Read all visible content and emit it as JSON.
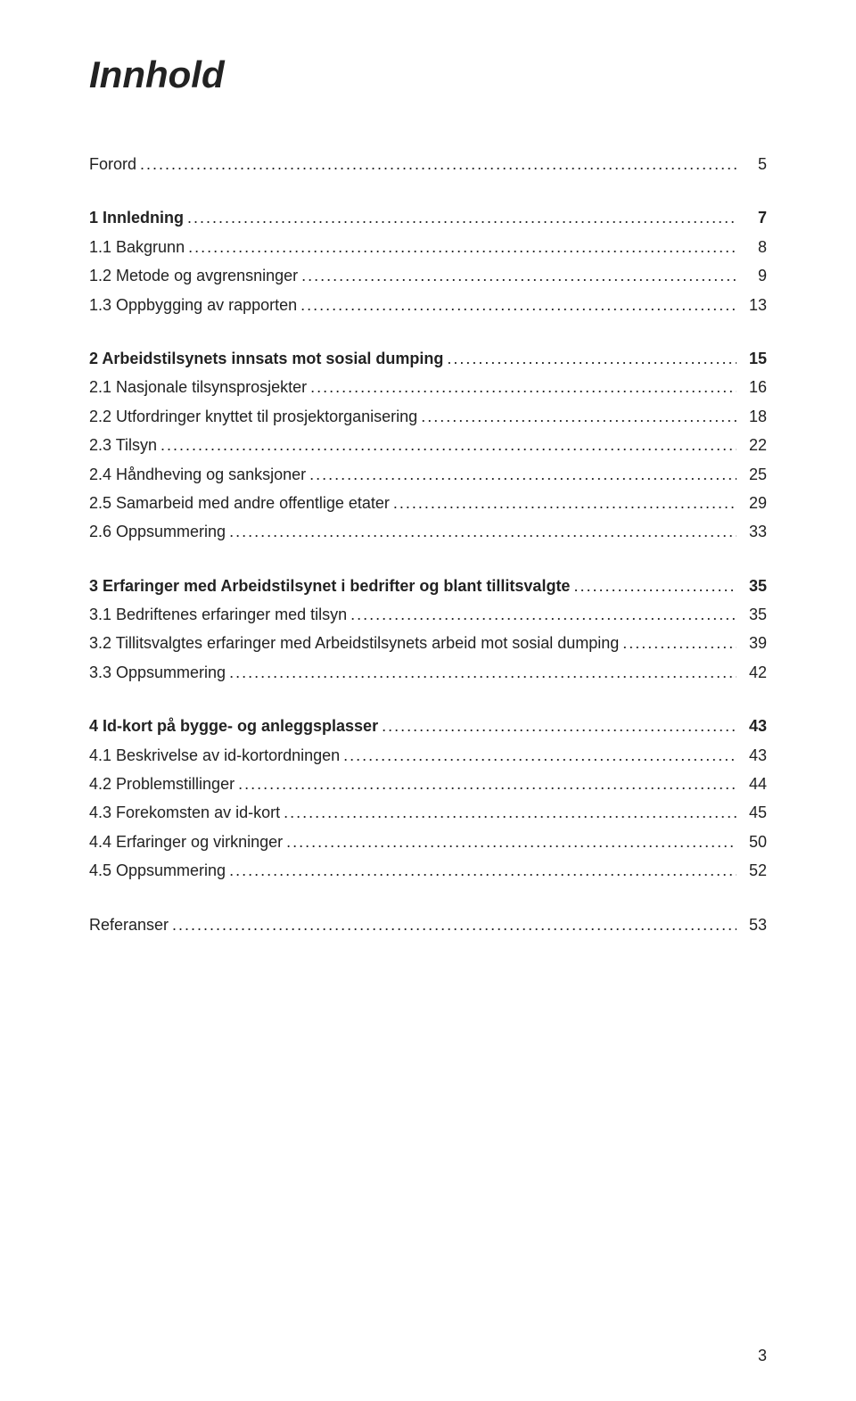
{
  "title": "Innhold",
  "page_number": "3",
  "colors": {
    "text": "#222222",
    "background": "#ffffff"
  },
  "typography": {
    "title_fontsize": 42,
    "body_fontsize": 18,
    "title_style": "bold italic"
  },
  "toc": [
    {
      "entries": [
        {
          "label": "Forord",
          "page": "5",
          "bold": false
        }
      ]
    },
    {
      "entries": [
        {
          "label": "1 Innledning",
          "page": "7",
          "bold": true
        },
        {
          "label": "1.1 Bakgrunn",
          "page": "8",
          "bold": false
        },
        {
          "label": "1.2 Metode og avgrensninger",
          "page": "9",
          "bold": false
        },
        {
          "label": "1.3 Oppbygging av rapporten",
          "page": "13",
          "bold": false
        }
      ]
    },
    {
      "entries": [
        {
          "label": "2 Arbeidstilsynets innsats mot sosial dumping",
          "page": "15",
          "bold": true
        },
        {
          "label": "2.1 Nasjonale tilsynsprosjekter",
          "page": "16",
          "bold": false
        },
        {
          "label": "2.2 Utfordringer knyttet til prosjektorganisering",
          "page": "18",
          "bold": false
        },
        {
          "label": "2.3 Tilsyn",
          "page": "22",
          "bold": false
        },
        {
          "label": "2.4 Håndheving og sanksjoner",
          "page": "25",
          "bold": false
        },
        {
          "label": "2.5 Samarbeid med andre offentlige etater",
          "page": "29",
          "bold": false
        },
        {
          "label": "2.6 Oppsummering",
          "page": "33",
          "bold": false
        }
      ]
    },
    {
      "entries": [
        {
          "label": "3 Erfaringer med Arbeidstilsynet i bedrifter og blant tillitsvalgte",
          "page": "35",
          "bold": true
        },
        {
          "label": "3.1 Bedriftenes erfaringer med tilsyn",
          "page": "35",
          "bold": false
        },
        {
          "label": "3.2 Tillitsvalgtes erfaringer med Arbeidstilsynets arbeid mot sosial dumping",
          "page": "39",
          "bold": false
        },
        {
          "label": "3.3 Oppsummering",
          "page": "42",
          "bold": false
        }
      ]
    },
    {
      "entries": [
        {
          "label": "4 Id-kort på bygge- og anleggsplasser",
          "page": "43",
          "bold": true
        },
        {
          "label": "4.1 Beskrivelse av id-kortordningen",
          "page": "43",
          "bold": false
        },
        {
          "label": "4.2 Problemstillinger",
          "page": "44",
          "bold": false
        },
        {
          "label": "4.3 Forekomsten av id-kort",
          "page": "45",
          "bold": false
        },
        {
          "label": "4.4 Erfaringer og virkninger",
          "page": "50",
          "bold": false
        },
        {
          "label": "4.5 Oppsummering",
          "page": "52",
          "bold": false
        }
      ]
    },
    {
      "entries": [
        {
          "label": "Referanser",
          "page": "53",
          "bold": false
        }
      ]
    }
  ]
}
